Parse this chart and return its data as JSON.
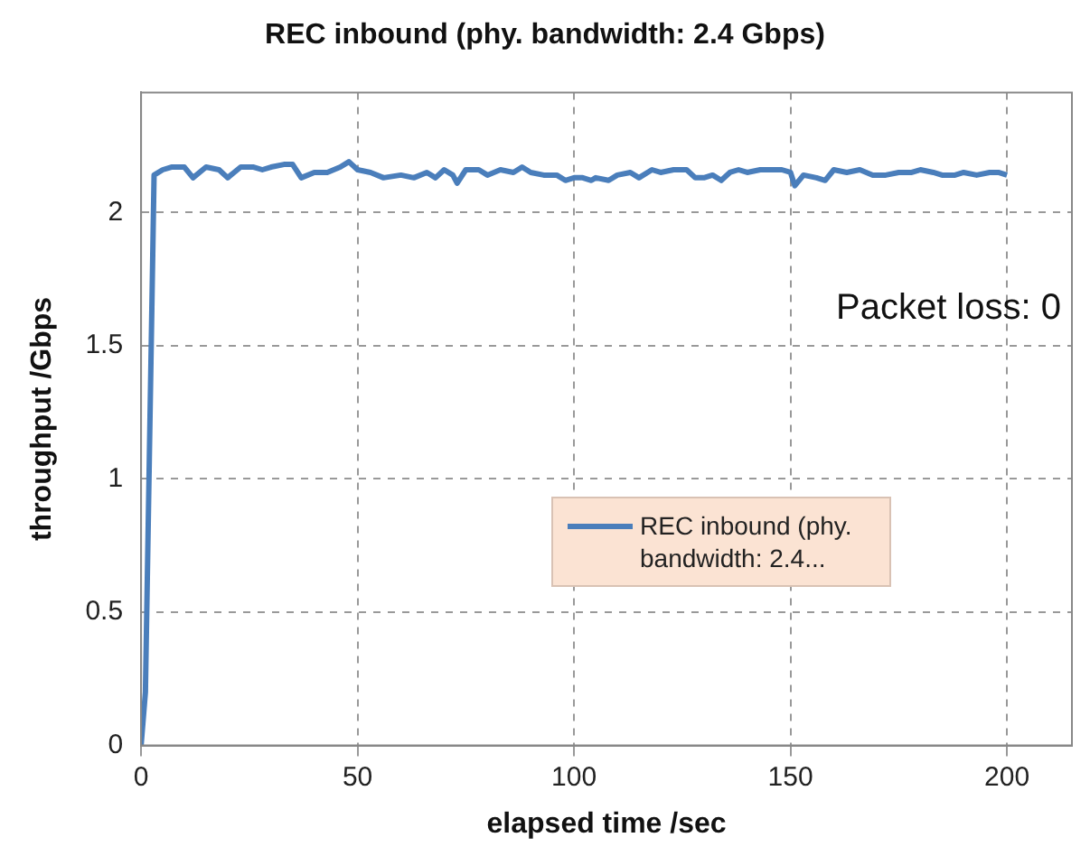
{
  "chart_data": {
    "type": "line",
    "title": "REC inbound (phy. bandwidth: 2.4 Gbps)",
    "xlabel": "elapsed time /sec",
    "ylabel": "throughput /Gbps",
    "annotations": [
      "Packet loss: 0"
    ],
    "x": [
      0,
      1,
      3,
      5,
      7,
      10,
      12,
      15,
      18,
      20,
      23,
      26,
      28,
      30,
      33,
      35,
      37,
      40,
      43,
      46,
      48,
      50,
      53,
      56,
      60,
      63,
      66,
      68,
      70,
      72,
      73,
      75,
      78,
      80,
      83,
      86,
      88,
      90,
      93,
      96,
      98,
      100,
      102,
      104,
      105,
      108,
      110,
      113,
      115,
      118,
      120,
      123,
      126,
      128,
      130,
      132,
      134,
      136,
      138,
      140,
      143,
      146,
      148,
      150,
      151,
      153,
      156,
      158,
      160,
      163,
      166,
      169,
      172,
      175,
      178,
      180,
      183,
      185,
      188,
      190,
      193,
      196,
      198,
      200
    ],
    "series": [
      {
        "name": "REC inbound (phy. bandwidth: 2.4...",
        "color": "#4a7ebb",
        "values": [
          0,
          0.2,
          2.14,
          2.16,
          2.17,
          2.17,
          2.13,
          2.17,
          2.16,
          2.13,
          2.17,
          2.17,
          2.16,
          2.17,
          2.18,
          2.18,
          2.13,
          2.15,
          2.15,
          2.17,
          2.19,
          2.16,
          2.15,
          2.13,
          2.14,
          2.13,
          2.15,
          2.13,
          2.16,
          2.14,
          2.11,
          2.16,
          2.16,
          2.14,
          2.16,
          2.15,
          2.17,
          2.15,
          2.14,
          2.14,
          2.12,
          2.13,
          2.13,
          2.12,
          2.13,
          2.12,
          2.14,
          2.15,
          2.13,
          2.16,
          2.15,
          2.16,
          2.16,
          2.13,
          2.13,
          2.14,
          2.12,
          2.15,
          2.16,
          2.15,
          2.16,
          2.16,
          2.16,
          2.15,
          2.1,
          2.14,
          2.13,
          2.12,
          2.16,
          2.15,
          2.16,
          2.14,
          2.14,
          2.15,
          2.15,
          2.16,
          2.15,
          2.14,
          2.14,
          2.15,
          2.14,
          2.15,
          2.15,
          2.14
        ]
      }
    ],
    "xlim": [
      0,
      215
    ],
    "xticks": [
      0,
      50,
      100,
      150,
      200
    ],
    "ylim": [
      0,
      2.45
    ],
    "yticks": [
      0,
      0.5,
      1,
      1.5,
      2
    ],
    "grid": true,
    "legend": "right",
    "marker": "none",
    "line_style": "solid"
  }
}
